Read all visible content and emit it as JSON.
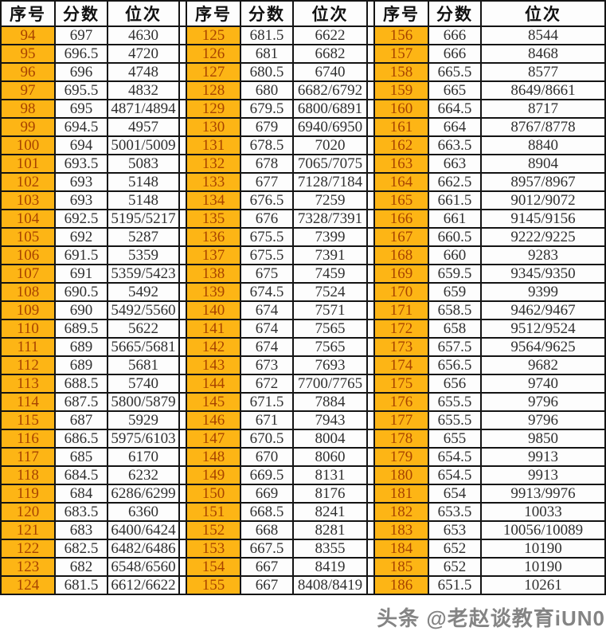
{
  "watermark": {
    "text": "头条 @老赵谈教育iUN0"
  },
  "colors": {
    "seq_column_bg": "#FDB515",
    "seq_column_text": "#A84300",
    "cell_bg": "#FDFDFD",
    "cell_text": "#303030",
    "border": "#141414"
  },
  "chart_data": {
    "type": "table",
    "title": "",
    "columns": [
      "序号",
      "分数",
      "位次"
    ],
    "groups": [
      {
        "rows": [
          {
            "no": "94",
            "score": "697",
            "rank": "4630"
          },
          {
            "no": "95",
            "score": "696.5",
            "rank": "4720"
          },
          {
            "no": "96",
            "score": "696",
            "rank": "4748"
          },
          {
            "no": "97",
            "score": "695.5",
            "rank": "4832"
          },
          {
            "no": "98",
            "score": "695",
            "rank": "4871/4894"
          },
          {
            "no": "99",
            "score": "694.5",
            "rank": "4957"
          },
          {
            "no": "100",
            "score": "694",
            "rank": "5001/5009"
          },
          {
            "no": "101",
            "score": "693.5",
            "rank": "5083"
          },
          {
            "no": "102",
            "score": "693",
            "rank": "5148"
          },
          {
            "no": "103",
            "score": "693",
            "rank": "5148"
          },
          {
            "no": "104",
            "score": "692.5",
            "rank": "5195/5217"
          },
          {
            "no": "105",
            "score": "692",
            "rank": "5287"
          },
          {
            "no": "106",
            "score": "691.5",
            "rank": "5359"
          },
          {
            "no": "107",
            "score": "691",
            "rank": "5359/5423"
          },
          {
            "no": "108",
            "score": "690.5",
            "rank": "5492"
          },
          {
            "no": "109",
            "score": "690",
            "rank": "5492/5560"
          },
          {
            "no": "110",
            "score": "689.5",
            "rank": "5622"
          },
          {
            "no": "111",
            "score": "689",
            "rank": "5665/5681"
          },
          {
            "no": "112",
            "score": "689",
            "rank": "5681"
          },
          {
            "no": "113",
            "score": "688.5",
            "rank": "5740"
          },
          {
            "no": "114",
            "score": "687.5",
            "rank": "5800/5879"
          },
          {
            "no": "115",
            "score": "687",
            "rank": "5929"
          },
          {
            "no": "116",
            "score": "686.5",
            "rank": "5975/6103"
          },
          {
            "no": "117",
            "score": "685",
            "rank": "6170"
          },
          {
            "no": "118",
            "score": "684.5",
            "rank": "6232"
          },
          {
            "no": "119",
            "score": "684",
            "rank": "6286/6299"
          },
          {
            "no": "120",
            "score": "683.5",
            "rank": "6360"
          },
          {
            "no": "121",
            "score": "683",
            "rank": "6400/6424"
          },
          {
            "no": "122",
            "score": "682.5",
            "rank": "6482/6486"
          },
          {
            "no": "123",
            "score": "682",
            "rank": "6548/6560"
          },
          {
            "no": "124",
            "score": "681.5",
            "rank": "6612/6622"
          }
        ]
      },
      {
        "rows": [
          {
            "no": "125",
            "score": "681.5",
            "rank": "6622"
          },
          {
            "no": "126",
            "score": "681",
            "rank": "6682"
          },
          {
            "no": "127",
            "score": "680.5",
            "rank": "6740"
          },
          {
            "no": "128",
            "score": "680",
            "rank": "6682/6792"
          },
          {
            "no": "129",
            "score": "679.5",
            "rank": "6800/6891"
          },
          {
            "no": "130",
            "score": "679",
            "rank": "6940/6950"
          },
          {
            "no": "131",
            "score": "678.5",
            "rank": "7020"
          },
          {
            "no": "132",
            "score": "678",
            "rank": "7065/7075"
          },
          {
            "no": "133",
            "score": "677",
            "rank": "7128/7184"
          },
          {
            "no": "134",
            "score": "676.5",
            "rank": "7259"
          },
          {
            "no": "135",
            "score": "676",
            "rank": "7328/7391"
          },
          {
            "no": "136",
            "score": "675.5",
            "rank": "7399"
          },
          {
            "no": "137",
            "score": "675.5",
            "rank": "7391"
          },
          {
            "no": "138",
            "score": "675",
            "rank": "7459"
          },
          {
            "no": "139",
            "score": "674.5",
            "rank": "7524"
          },
          {
            "no": "140",
            "score": "674",
            "rank": "7571"
          },
          {
            "no": "141",
            "score": "674",
            "rank": "7565"
          },
          {
            "no": "142",
            "score": "674",
            "rank": "7565"
          },
          {
            "no": "143",
            "score": "673",
            "rank": "7693"
          },
          {
            "no": "144",
            "score": "672",
            "rank": "7700/7765"
          },
          {
            "no": "145",
            "score": "671.5",
            "rank": "7884"
          },
          {
            "no": "146",
            "score": "671",
            "rank": "7943"
          },
          {
            "no": "147",
            "score": "670.5",
            "rank": "8004"
          },
          {
            "no": "148",
            "score": "670",
            "rank": "8060"
          },
          {
            "no": "149",
            "score": "669.5",
            "rank": "8131"
          },
          {
            "no": "150",
            "score": "669",
            "rank": "8176"
          },
          {
            "no": "151",
            "score": "668.5",
            "rank": "8241"
          },
          {
            "no": "152",
            "score": "668",
            "rank": "8281"
          },
          {
            "no": "153",
            "score": "667.5",
            "rank": "8355"
          },
          {
            "no": "154",
            "score": "667",
            "rank": "8419"
          },
          {
            "no": "155",
            "score": "667",
            "rank": "8408/8419"
          }
        ]
      },
      {
        "rows": [
          {
            "no": "156",
            "score": "666",
            "rank": "8544"
          },
          {
            "no": "157",
            "score": "666",
            "rank": "8468"
          },
          {
            "no": "158",
            "score": "665.5",
            "rank": "8577"
          },
          {
            "no": "159",
            "score": "665",
            "rank": "8649/8661"
          },
          {
            "no": "160",
            "score": "664.5",
            "rank": "8717"
          },
          {
            "no": "161",
            "score": "664",
            "rank": "8767/8778"
          },
          {
            "no": "162",
            "score": "663.5",
            "rank": "8840"
          },
          {
            "no": "163",
            "score": "663",
            "rank": "8904"
          },
          {
            "no": "164",
            "score": "662.5",
            "rank": "8957/8967"
          },
          {
            "no": "165",
            "score": "661.5",
            "rank": "9012/9072"
          },
          {
            "no": "166",
            "score": "661",
            "rank": "9145/9156"
          },
          {
            "no": "167",
            "score": "660.5",
            "rank": "9222/9225"
          },
          {
            "no": "168",
            "score": "660",
            "rank": "9283"
          },
          {
            "no": "169",
            "score": "659.5",
            "rank": "9345/9350"
          },
          {
            "no": "170",
            "score": "659",
            "rank": "9399"
          },
          {
            "no": "171",
            "score": "658.5",
            "rank": "9462/9467"
          },
          {
            "no": "172",
            "score": "658",
            "rank": "9512/9524"
          },
          {
            "no": "173",
            "score": "657.5",
            "rank": "9564/9625"
          },
          {
            "no": "174",
            "score": "656.5",
            "rank": "9682"
          },
          {
            "no": "175",
            "score": "656",
            "rank": "9740"
          },
          {
            "no": "176",
            "score": "655.5",
            "rank": "9796"
          },
          {
            "no": "177",
            "score": "655.5",
            "rank": "9796"
          },
          {
            "no": "178",
            "score": "655",
            "rank": "9850"
          },
          {
            "no": "179",
            "score": "654.5",
            "rank": "9913"
          },
          {
            "no": "180",
            "score": "654.5",
            "rank": "9913"
          },
          {
            "no": "181",
            "score": "654",
            "rank": "9913/9976"
          },
          {
            "no": "182",
            "score": "653.5",
            "rank": "10033"
          },
          {
            "no": "183",
            "score": "653",
            "rank": "10056/10089"
          },
          {
            "no": "184",
            "score": "652",
            "rank": "10190"
          },
          {
            "no": "185",
            "score": "652",
            "rank": "10190"
          },
          {
            "no": "186",
            "score": "651.5",
            "rank": "10261"
          }
        ]
      }
    ]
  }
}
